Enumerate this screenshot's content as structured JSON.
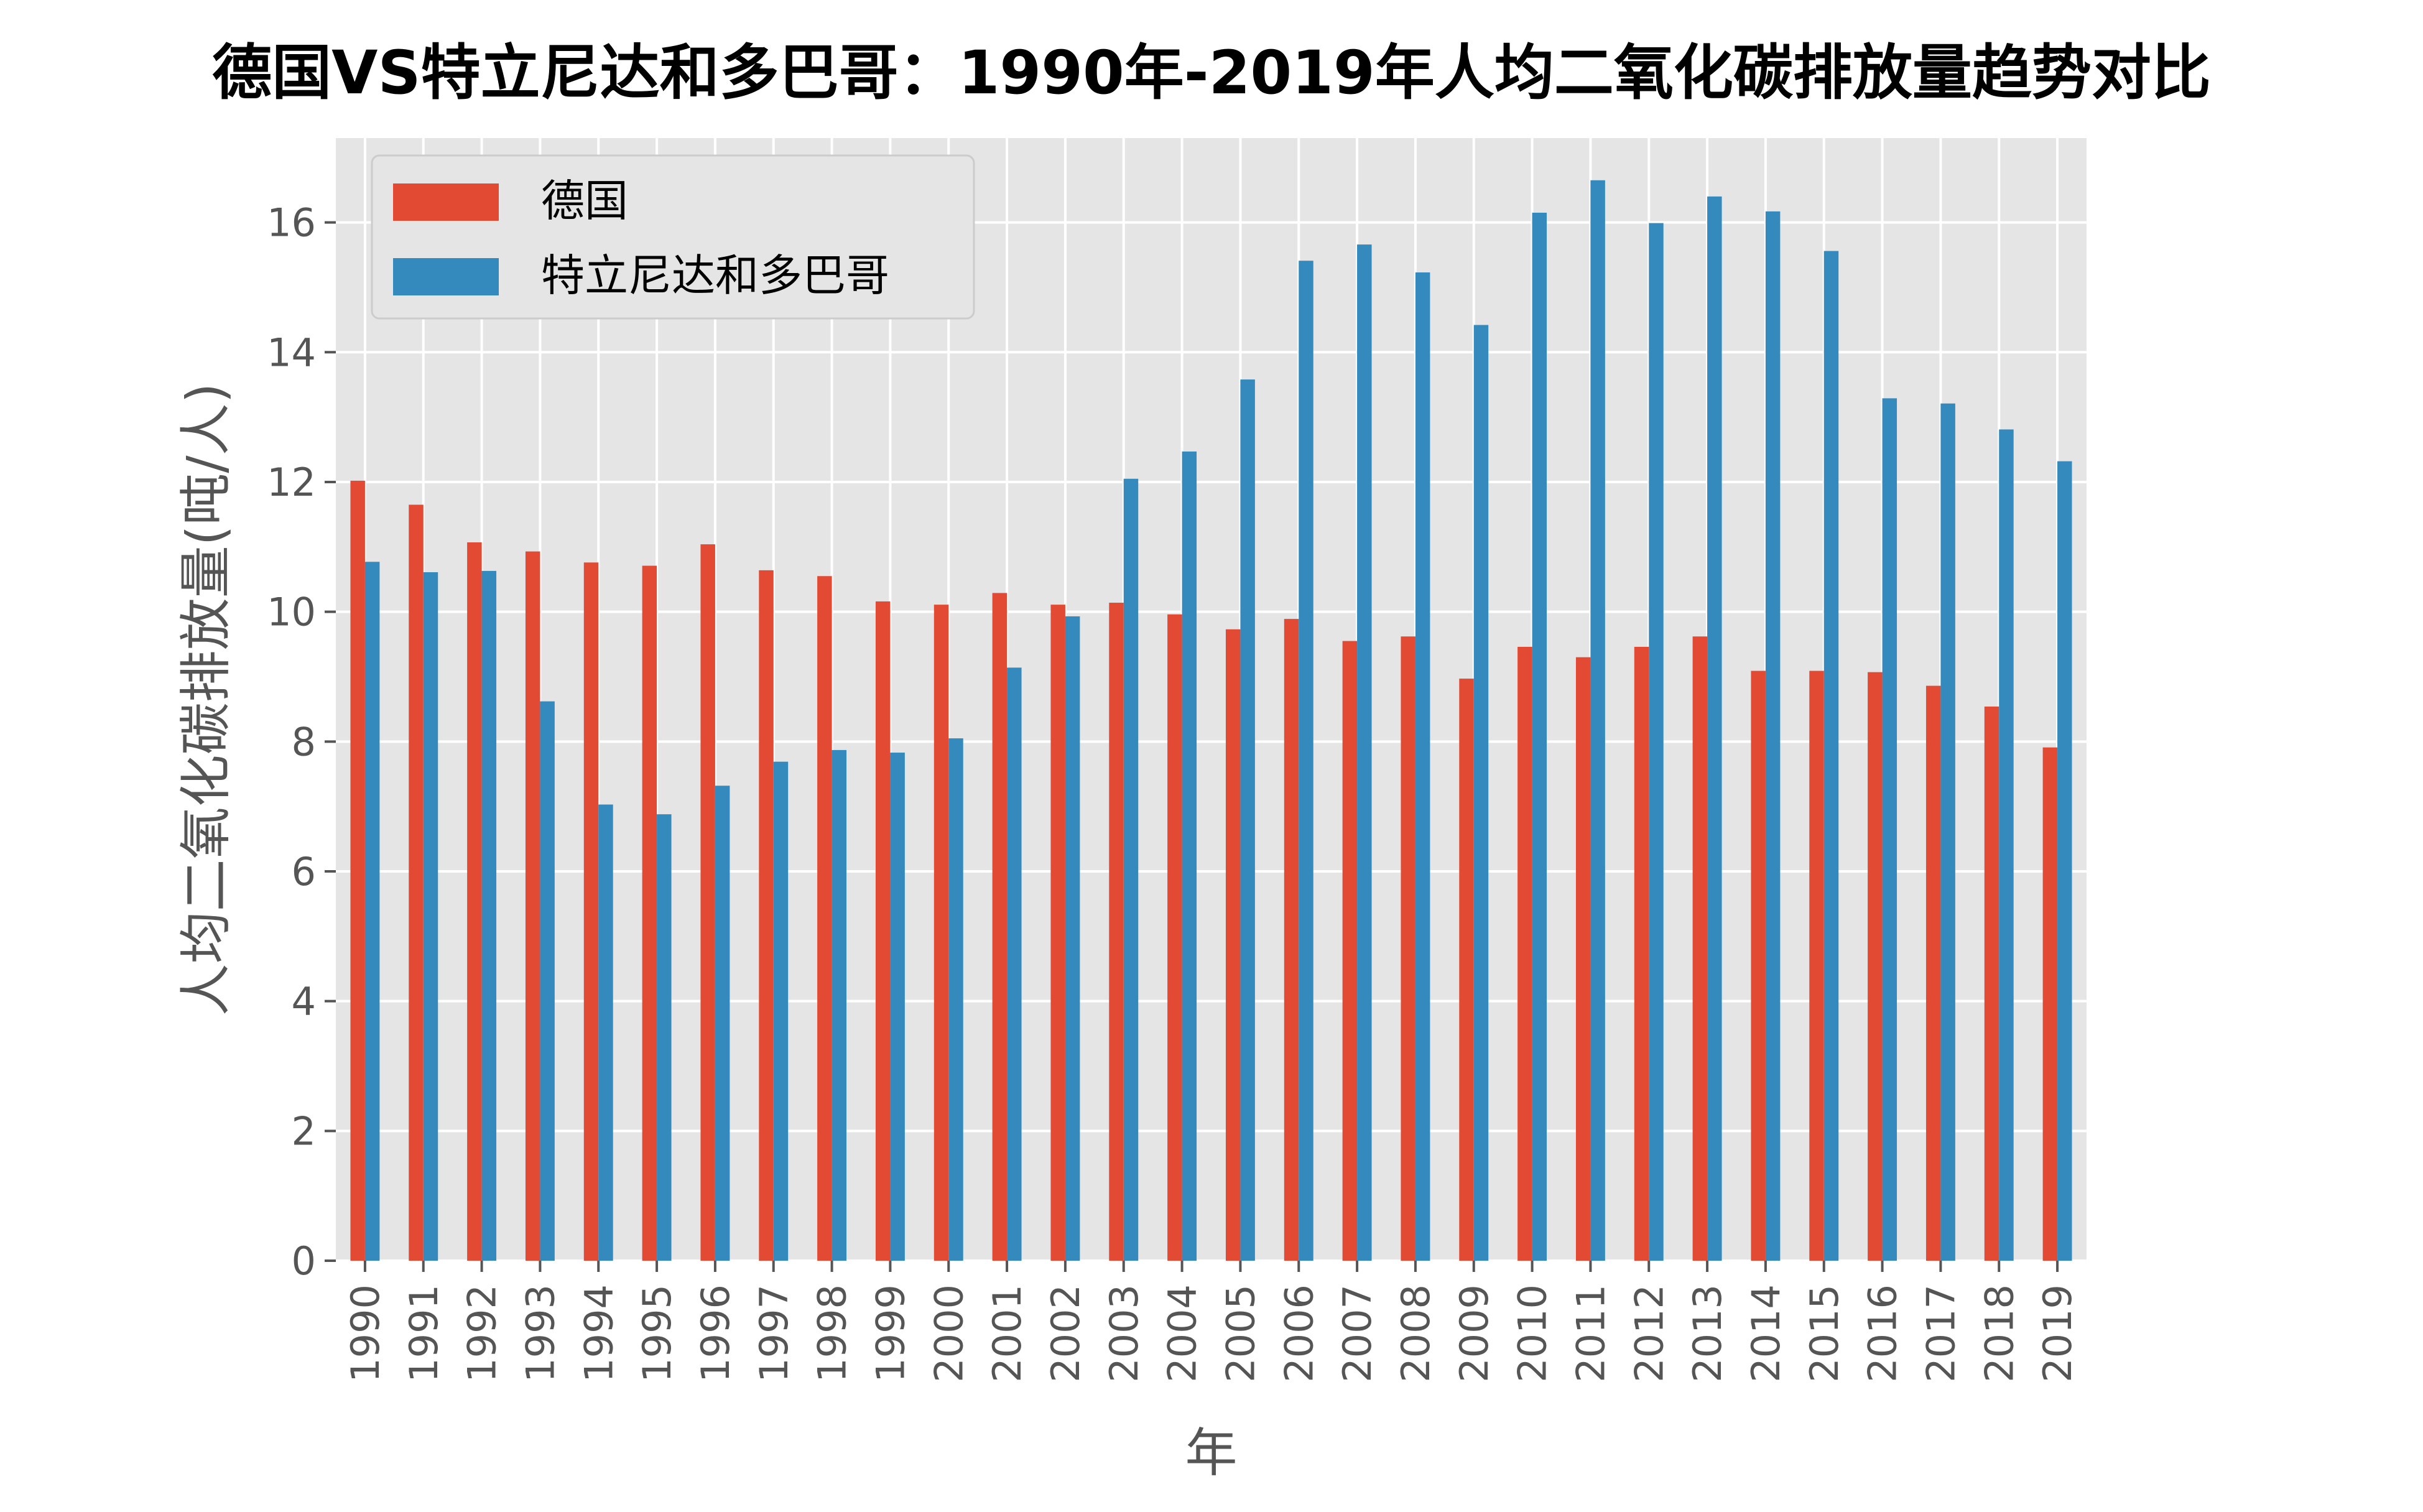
{
  "chart_data": {
    "type": "bar",
    "title": "德国VS特立尼达和多巴哥：1990年-2019年人均二氧化碳排放量趋势对比",
    "xlabel": "年",
    "ylabel": "人均二氧化碳排放量(吨/人)",
    "ylim": [
      0,
      17.3
    ],
    "yticks": [
      0,
      2,
      4,
      6,
      8,
      10,
      12,
      14,
      16
    ],
    "grid": true,
    "legend_position": "top-left",
    "categories": [
      "1990",
      "1991",
      "1992",
      "1993",
      "1994",
      "1995",
      "1996",
      "1997",
      "1998",
      "1999",
      "2000",
      "2001",
      "2002",
      "2003",
      "2004",
      "2005",
      "2006",
      "2007",
      "2008",
      "2009",
      "2010",
      "2011",
      "2012",
      "2013",
      "2014",
      "2015",
      "2016",
      "2017",
      "2018",
      "2019"
    ],
    "series": [
      {
        "name": "德国",
        "color": "#E24A33",
        "values": [
          12.02,
          11.65,
          11.07,
          10.93,
          10.76,
          10.71,
          11.04,
          10.64,
          10.55,
          10.16,
          10.11,
          10.29,
          10.11,
          10.14,
          9.96,
          9.73,
          9.89,
          9.55,
          9.62,
          8.97,
          9.46,
          9.3,
          9.46,
          9.62,
          9.09,
          9.09,
          9.07,
          8.86,
          8.54,
          7.91
        ]
      },
      {
        "name": "特立尼达和多巴哥",
        "color": "#348ABD",
        "values": [
          10.77,
          10.61,
          10.63,
          8.62,
          7.03,
          6.88,
          7.32,
          7.69,
          7.87,
          7.83,
          8.05,
          9.14,
          9.93,
          12.05,
          12.47,
          13.58,
          15.41,
          15.66,
          15.23,
          14.42,
          16.15,
          16.65,
          15.99,
          16.4,
          16.17,
          15.56,
          13.29,
          13.21,
          12.81,
          12.32
        ]
      }
    ]
  }
}
